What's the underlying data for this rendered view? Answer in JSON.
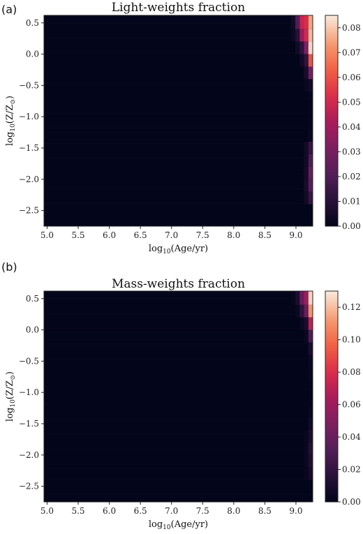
{
  "chart_data": [
    {
      "panel_label": "(a)",
      "type": "heatmap",
      "title": "Light-weights fraction",
      "xlabel": {
        "prefix": "log",
        "sub": "10",
        "suffix": "(Age/yr)"
      },
      "ylabel": {
        "prefix": "log",
        "sub": "10",
        "suffix": "(Z/Z",
        "sun_sub": "⊙",
        "close": ")"
      },
      "xlim": [
        4.95,
        9.27
      ],
      "ylim": [
        -2.75,
        0.62
      ],
      "x_ticks": [
        "5.0",
        "5.5",
        "6.0",
        "6.5",
        "7.0",
        "7.5",
        "8.0",
        "8.5",
        "9.0"
      ],
      "x_tick_values": [
        5.0,
        5.5,
        6.0,
        6.5,
        7.0,
        7.5,
        8.0,
        8.5,
        9.0
      ],
      "y_ticks": [
        "0.5",
        "0.0",
        "−0.5",
        "−1.0",
        "−1.5",
        "−2.0",
        "−2.5"
      ],
      "y_tick_values": [
        0.5,
        0.0,
        -0.5,
        -1.0,
        -1.5,
        -2.0,
        -2.5
      ],
      "colorbar": {
        "vmin": 0.0,
        "vmax": 0.085,
        "ticks": [
          "0.00",
          "0.01",
          "0.02",
          "0.03",
          "0.04",
          "0.05",
          "0.06",
          "0.07",
          "0.08"
        ],
        "tick_values": [
          0.0,
          0.01,
          0.02,
          0.03,
          0.04,
          0.05,
          0.06,
          0.07,
          0.08
        ]
      },
      "x_bin_edges": [
        8.92,
        8.99,
        9.06,
        9.13,
        9.2,
        9.27
      ],
      "y_bin_edges": [
        -2.4,
        -2.2,
        -2.0,
        -1.8,
        -1.6,
        -1.4,
        -1.2,
        -1.0,
        -0.8,
        -0.6,
        -0.4,
        -0.2,
        0.0,
        0.2,
        0.4,
        0.62
      ],
      "values_top_to_bottom": [
        [
          0.004,
          0.02,
          0.048,
          0.052,
          0.075
        ],
        [
          0.003,
          0.01,
          0.038,
          0.05,
          0.078
        ],
        [
          0.0,
          0.004,
          0.012,
          0.032,
          0.082
        ],
        [
          0.0,
          0.0,
          0.004,
          0.012,
          0.06
        ],
        [
          0.0,
          0.0,
          0.0,
          0.006,
          0.03
        ],
        [
          0.0,
          0.0,
          0.0,
          0.002,
          0.004
        ],
        [
          0.0,
          0.0,
          0.0,
          0.0,
          0.001
        ],
        [
          0.0,
          0.0,
          0.0,
          0.0,
          0.001
        ],
        [
          0.0,
          0.0,
          0.0,
          0.0,
          0.001
        ],
        [
          0.0,
          0.0,
          0.0,
          0.0,
          0.002
        ],
        [
          0.0,
          0.0,
          0.0,
          0.004,
          0.014
        ],
        [
          0.0,
          0.0,
          0.0,
          0.004,
          0.02
        ],
        [
          0.0,
          0.0,
          0.0,
          0.005,
          0.026
        ],
        [
          0.0,
          0.0,
          0.0,
          0.006,
          0.022
        ],
        [
          0.0,
          0.0,
          0.0,
          0.004,
          0.014
        ]
      ]
    },
    {
      "panel_label": "(b)",
      "type": "heatmap",
      "title": "Mass-weights fraction",
      "xlabel": {
        "prefix": "log",
        "sub": "10",
        "suffix": "(Age/yr)"
      },
      "ylabel": {
        "prefix": "log",
        "sub": "10",
        "suffix": "(Z/Z",
        "sun_sub": "⊙",
        "close": ")"
      },
      "xlim": [
        4.95,
        9.27
      ],
      "ylim": [
        -2.75,
        0.62
      ],
      "x_ticks": [
        "5.0",
        "5.5",
        "6.0",
        "6.5",
        "7.0",
        "7.5",
        "8.0",
        "8.5",
        "9.0"
      ],
      "x_tick_values": [
        5.0,
        5.5,
        6.0,
        6.5,
        7.0,
        7.5,
        8.0,
        8.5,
        9.0
      ],
      "y_ticks": [
        "0.5",
        "0.0",
        "−0.5",
        "−1.0",
        "−1.5",
        "−2.0",
        "−2.5"
      ],
      "y_tick_values": [
        0.5,
        0.0,
        -0.5,
        -1.0,
        -1.5,
        -2.0,
        -2.5
      ],
      "colorbar": {
        "vmin": 0.0,
        "vmax": 0.13,
        "ticks": [
          "0.00",
          "0.02",
          "0.04",
          "0.06",
          "0.08",
          "0.10",
          "0.12"
        ],
        "tick_values": [
          0.0,
          0.02,
          0.04,
          0.06,
          0.08,
          0.1,
          0.12
        ]
      },
      "x_bin_edges": [
        8.92,
        8.99,
        9.06,
        9.13,
        9.2,
        9.27
      ],
      "y_bin_edges": [
        -2.4,
        -2.2,
        -2.0,
        -1.8,
        -1.6,
        -1.4,
        -1.2,
        -1.0,
        -0.8,
        -0.6,
        -0.4,
        -0.2,
        0.0,
        0.2,
        0.4,
        0.62
      ],
      "values_top_to_bottom": [
        [
          0.002,
          0.01,
          0.04,
          0.06,
          0.125
        ],
        [
          0.0,
          0.004,
          0.018,
          0.04,
          0.11
        ],
        [
          0.0,
          0.0,
          0.004,
          0.01,
          0.07
        ],
        [
          0.0,
          0.0,
          0.0,
          0.004,
          0.03
        ],
        [
          0.0,
          0.0,
          0.0,
          0.0,
          0.01
        ],
        [
          0.0,
          0.0,
          0.0,
          0.0,
          0.004
        ],
        [
          0.0,
          0.0,
          0.0,
          0.0,
          0.002
        ],
        [
          0.0,
          0.0,
          0.0,
          0.0,
          0.001
        ],
        [
          0.0,
          0.0,
          0.0,
          0.0,
          0.001
        ],
        [
          0.0,
          0.0,
          0.0,
          0.0,
          0.002
        ],
        [
          0.0,
          0.0,
          0.0,
          0.0,
          0.006
        ],
        [
          0.0,
          0.0,
          0.0,
          0.002,
          0.01
        ],
        [
          0.0,
          0.0,
          0.0,
          0.003,
          0.014
        ],
        [
          0.0,
          0.0,
          0.0,
          0.003,
          0.012
        ],
        [
          0.0,
          0.0,
          0.0,
          0.002,
          0.008
        ]
      ]
    }
  ]
}
